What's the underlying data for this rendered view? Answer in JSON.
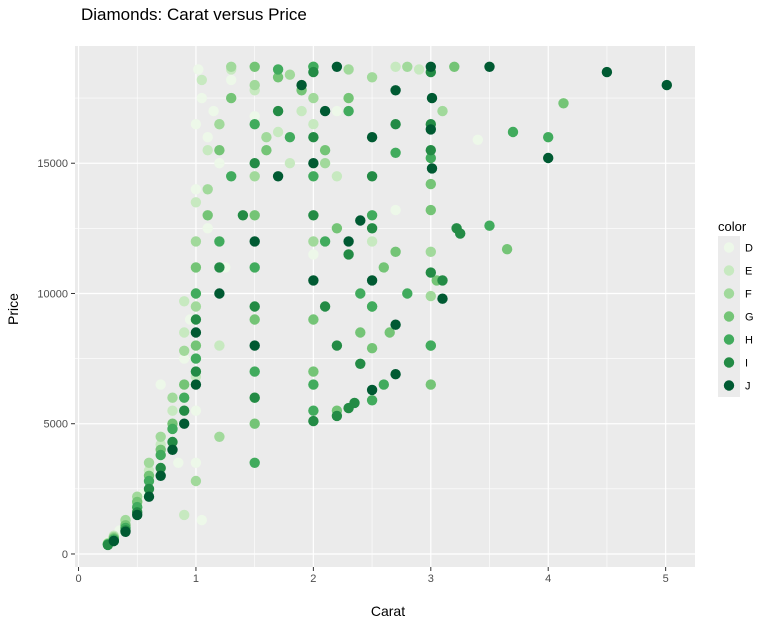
{
  "chart_data": {
    "type": "scatter",
    "title": "Diamonds: Carat versus Price",
    "xlabel": "Carat",
    "ylabel": "Price",
    "xlim": [
      -0.03,
      5.25
    ],
    "ylim": [
      -500,
      19500
    ],
    "x_ticks": [
      0,
      1,
      2,
      3,
      4,
      5
    ],
    "y_ticks": [
      0,
      5000,
      10000,
      15000
    ],
    "grid": true,
    "legend": {
      "title": "color",
      "placement": "right",
      "entries": [
        {
          "label": "D",
          "color": "#edf8e9"
        },
        {
          "label": "E",
          "color": "#c7e9c0"
        },
        {
          "label": "F",
          "color": "#a1d99b"
        },
        {
          "label": "G",
          "color": "#74c476"
        },
        {
          "label": "H",
          "color": "#41ab5d"
        },
        {
          "label": "I",
          "color": "#238b45"
        },
        {
          "label": "J",
          "color": "#005a32"
        }
      ]
    },
    "series": [
      {
        "name": "D",
        "color": "#edf8e9",
        "points": [
          [
            0.25,
            450
          ],
          [
            0.3,
            600
          ],
          [
            0.35,
            900
          ],
          [
            0.4,
            1100
          ],
          [
            0.5,
            1800
          ],
          [
            0.55,
            2300
          ],
          [
            0.6,
            3000
          ],
          [
            0.7,
            3800
          ],
          [
            0.8,
            5000
          ],
          [
            0.9,
            7500
          ],
          [
            0.95,
            9000
          ],
          [
            1.0,
            11000
          ],
          [
            1.0,
            14000
          ],
          [
            1.0,
            16500
          ],
          [
            1.02,
            18600
          ],
          [
            1.05,
            17500
          ],
          [
            1.1,
            16000
          ],
          [
            1.1,
            12500
          ],
          [
            1.2,
            15000
          ],
          [
            1.3,
            18200
          ],
          [
            1.5,
            16800
          ],
          [
            1.0,
            5500
          ],
          [
            1.0,
            3500
          ],
          [
            0.7,
            6500
          ],
          [
            1.05,
            1300
          ],
          [
            2.0,
            11500
          ],
          [
            2.2,
            17000
          ],
          [
            2.7,
            13200
          ],
          [
            3.4,
            15900
          ],
          [
            0.85,
            3500
          ],
          [
            1.15,
            17000
          ],
          [
            1.25,
            11000
          ]
        ]
      },
      {
        "name": "E",
        "color": "#c7e9c0",
        "points": [
          [
            0.25,
            420
          ],
          [
            0.3,
            700
          ],
          [
            0.4,
            1200
          ],
          [
            0.5,
            2000
          ],
          [
            0.6,
            3200
          ],
          [
            0.7,
            4200
          ],
          [
            0.8,
            5500
          ],
          [
            0.9,
            8500
          ],
          [
            0.9,
            9700
          ],
          [
            1.0,
            10000
          ],
          [
            1.0,
            13500
          ],
          [
            1.05,
            18200
          ],
          [
            1.1,
            15500
          ],
          [
            1.2,
            16500
          ],
          [
            1.3,
            18600
          ],
          [
            1.5,
            17800
          ],
          [
            1.7,
            16200
          ],
          [
            1.9,
            17000
          ],
          [
            2.0,
            16500
          ],
          [
            2.2,
            14500
          ],
          [
            2.5,
            12000
          ],
          [
            2.7,
            18700
          ],
          [
            2.9,
            18600
          ],
          [
            0.9,
            1500
          ],
          [
            1.2,
            8000
          ],
          [
            1.8,
            15000
          ],
          [
            1.0,
            6800
          ]
        ]
      },
      {
        "name": "F",
        "color": "#a1d99b",
        "points": [
          [
            0.25,
            400
          ],
          [
            0.3,
            650
          ],
          [
            0.4,
            1300
          ],
          [
            0.5,
            2200
          ],
          [
            0.6,
            3500
          ],
          [
            0.7,
            4500
          ],
          [
            0.8,
            6000
          ],
          [
            0.9,
            7800
          ],
          [
            1.0,
            9500
          ],
          [
            1.0,
            12000
          ],
          [
            1.1,
            14000
          ],
          [
            1.2,
            16500
          ],
          [
            1.3,
            18700
          ],
          [
            1.5,
            18000
          ],
          [
            1.5,
            14500
          ],
          [
            1.6,
            16000
          ],
          [
            1.8,
            18400
          ],
          [
            2.0,
            17500
          ],
          [
            2.0,
            12000
          ],
          [
            2.1,
            15000
          ],
          [
            2.3,
            18600
          ],
          [
            2.5,
            18300
          ],
          [
            2.8,
            18700
          ],
          [
            3.0,
            11600
          ],
          [
            3.0,
            9900
          ],
          [
            3.1,
            17000
          ],
          [
            1.0,
            2800
          ],
          [
            1.2,
            4500
          ],
          [
            1.5,
            6000
          ]
        ]
      },
      {
        "name": "G",
        "color": "#74c476",
        "points": [
          [
            0.25,
            380
          ],
          [
            0.3,
            600
          ],
          [
            0.4,
            1100
          ],
          [
            0.5,
            2000
          ],
          [
            0.6,
            3000
          ],
          [
            0.7,
            4000
          ],
          [
            0.8,
            5000
          ],
          [
            0.9,
            6500
          ],
          [
            1.0,
            8000
          ],
          [
            1.0,
            11000
          ],
          [
            1.1,
            13000
          ],
          [
            1.2,
            15500
          ],
          [
            1.3,
            17500
          ],
          [
            1.5,
            18700
          ],
          [
            1.5,
            13000
          ],
          [
            1.5,
            9000
          ],
          [
            1.5,
            5000
          ],
          [
            1.6,
            15500
          ],
          [
            1.7,
            18300
          ],
          [
            1.9,
            17800
          ],
          [
            2.0,
            18700
          ],
          [
            2.0,
            9000
          ],
          [
            2.0,
            7000
          ],
          [
            2.1,
            15500
          ],
          [
            2.2,
            12500
          ],
          [
            2.3,
            17500
          ],
          [
            2.4,
            8500
          ],
          [
            2.5,
            7900
          ],
          [
            2.5,
            9500
          ],
          [
            2.6,
            11000
          ],
          [
            2.65,
            8500
          ],
          [
            2.7,
            11600
          ],
          [
            3.0,
            14200
          ],
          [
            3.0,
            13200
          ],
          [
            3.0,
            6500
          ],
          [
            3.0,
            8000
          ],
          [
            3.05,
            10500
          ],
          [
            3.2,
            18700
          ],
          [
            3.65,
            11700
          ],
          [
            4.13,
            17300
          ],
          [
            2.2,
            5500
          ]
        ]
      },
      {
        "name": "H",
        "color": "#41ab5d",
        "points": [
          [
            0.25,
            370
          ],
          [
            0.3,
            550
          ],
          [
            0.4,
            1000
          ],
          [
            0.5,
            1800
          ],
          [
            0.6,
            2800
          ],
          [
            0.7,
            3800
          ],
          [
            0.8,
            4800
          ],
          [
            0.9,
            6000
          ],
          [
            1.0,
            7500
          ],
          [
            1.0,
            10000
          ],
          [
            1.2,
            12000
          ],
          [
            1.3,
            14500
          ],
          [
            1.5,
            16500
          ],
          [
            1.5,
            11000
          ],
          [
            1.5,
            7000
          ],
          [
            1.5,
            3500
          ],
          [
            1.7,
            18600
          ],
          [
            1.8,
            16000
          ],
          [
            2.0,
            14500
          ],
          [
            2.0,
            18700
          ],
          [
            2.0,
            6500
          ],
          [
            2.0,
            5500
          ],
          [
            2.1,
            12000
          ],
          [
            2.3,
            17000
          ],
          [
            2.4,
            10000
          ],
          [
            2.5,
            9500
          ],
          [
            2.5,
            13000
          ],
          [
            2.7,
            15400
          ],
          [
            2.8,
            10000
          ],
          [
            3.0,
            15200
          ],
          [
            3.0,
            8000
          ],
          [
            3.5,
            12600
          ],
          [
            4.0,
            16000
          ],
          [
            3.7,
            16200
          ],
          [
            2.5,
            5900
          ],
          [
            2.6,
            6500
          ]
        ]
      },
      {
        "name": "I",
        "color": "#238b45",
        "points": [
          [
            0.25,
            350
          ],
          [
            0.3,
            500
          ],
          [
            0.4,
            900
          ],
          [
            0.5,
            1600
          ],
          [
            0.6,
            2500
          ],
          [
            0.7,
            3300
          ],
          [
            0.8,
            4300
          ],
          [
            0.9,
            5500
          ],
          [
            1.0,
            7000
          ],
          [
            1.0,
            9000
          ],
          [
            1.2,
            11000
          ],
          [
            1.4,
            13000
          ],
          [
            1.5,
            15000
          ],
          [
            1.5,
            9500
          ],
          [
            1.5,
            6000
          ],
          [
            1.7,
            17000
          ],
          [
            2.0,
            13000
          ],
          [
            2.0,
            16000
          ],
          [
            2.0,
            18500
          ],
          [
            2.0,
            5100
          ],
          [
            2.1,
            9500
          ],
          [
            2.2,
            8000
          ],
          [
            2.3,
            11500
          ],
          [
            2.5,
            14500
          ],
          [
            2.5,
            12500
          ],
          [
            2.7,
            16500
          ],
          [
            3.0,
            16500
          ],
          [
            3.0,
            18500
          ],
          [
            3.0,
            10800
          ],
          [
            3.0,
            15500
          ],
          [
            3.1,
            10500
          ],
          [
            3.22,
            12500
          ],
          [
            3.25,
            12300
          ],
          [
            2.3,
            5600
          ],
          [
            2.35,
            5800
          ],
          [
            2.4,
            7300
          ],
          [
            2.2,
            5300
          ]
        ]
      },
      {
        "name": "J",
        "color": "#005a32",
        "points": [
          [
            0.3,
            500
          ],
          [
            0.4,
            850
          ],
          [
            0.5,
            1500
          ],
          [
            0.6,
            2200
          ],
          [
            0.7,
            3000
          ],
          [
            0.8,
            4000
          ],
          [
            0.9,
            5000
          ],
          [
            1.0,
            6500
          ],
          [
            1.0,
            8500
          ],
          [
            1.2,
            10000
          ],
          [
            1.5,
            12000
          ],
          [
            1.5,
            8000
          ],
          [
            1.7,
            14500
          ],
          [
            1.9,
            18000
          ],
          [
            2.0,
            10500
          ],
          [
            2.0,
            15000
          ],
          [
            2.1,
            17000
          ],
          [
            2.2,
            18700
          ],
          [
            2.3,
            12000
          ],
          [
            2.5,
            16000
          ],
          [
            2.5,
            6300
          ],
          [
            2.7,
            17800
          ],
          [
            2.7,
            6900
          ],
          [
            2.7,
            8800
          ],
          [
            3.0,
            16300
          ],
          [
            3.0,
            18700
          ],
          [
            3.01,
            17500
          ],
          [
            3.01,
            14800
          ],
          [
            3.1,
            9800
          ],
          [
            3.5,
            18700
          ],
          [
            4.0,
            15200
          ],
          [
            4.5,
            18500
          ],
          [
            5.01,
            18000
          ],
          [
            2.5,
            10500
          ],
          [
            2.4,
            12800
          ]
        ]
      }
    ]
  }
}
